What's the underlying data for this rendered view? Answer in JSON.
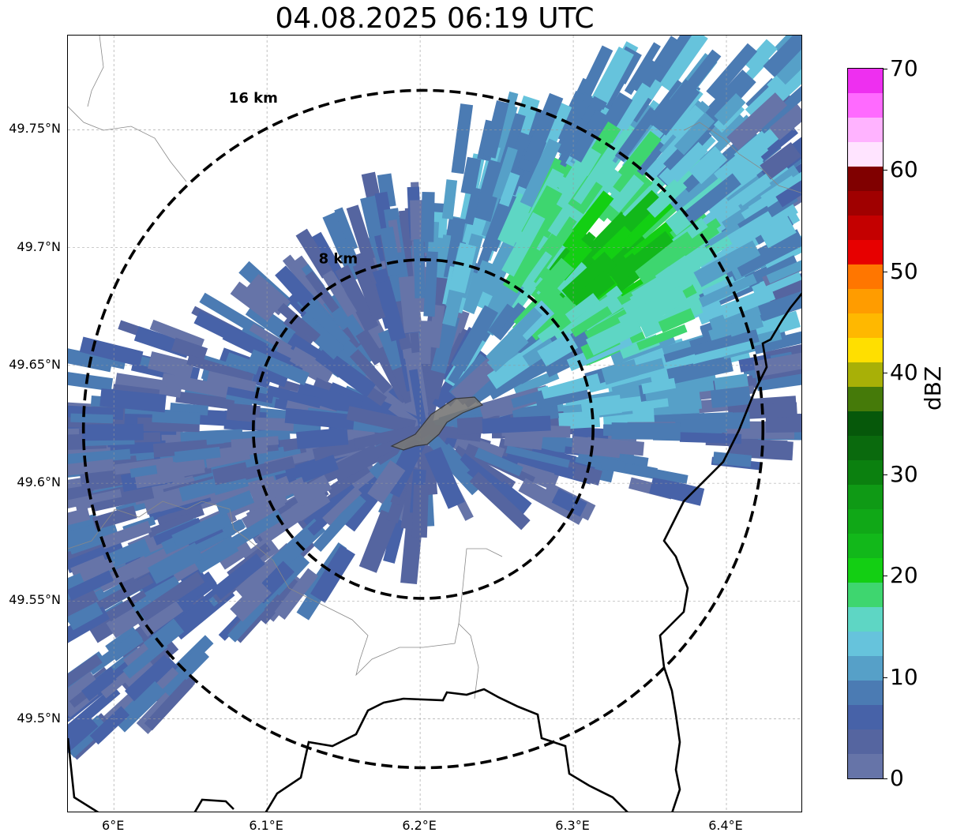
{
  "title": "04.08.2025 06:19 UTC",
  "map": {
    "extent": {
      "lon": [
        5.97,
        6.45
      ],
      "lat": [
        49.46,
        49.79
      ]
    },
    "center": {
      "lon": 6.202,
      "lat": 49.623
    },
    "range_rings": [
      {
        "label": "8 km",
        "radius_km": 8
      },
      {
        "label": "16 km",
        "radius_km": 16
      }
    ],
    "lat_ticks": [
      {
        "value": 49.75,
        "label": "49.75°N"
      },
      {
        "value": 49.7,
        "label": "49.7°N"
      },
      {
        "value": 49.65,
        "label": "49.65°N"
      },
      {
        "value": 49.6,
        "label": "49.6°N"
      },
      {
        "value": 49.55,
        "label": "49.55°N"
      },
      {
        "value": 49.5,
        "label": "49.5°N"
      }
    ],
    "lon_ticks": [
      {
        "value": 6.0,
        "label": "6°E"
      },
      {
        "value": 6.1,
        "label": "6.1°E"
      },
      {
        "value": 6.2,
        "label": "6.2°E"
      },
      {
        "value": 6.3,
        "label": "6.3°E"
      },
      {
        "value": 6.4,
        "label": "6.4°E"
      }
    ],
    "gridlines": true,
    "city_marker_color": "#777777"
  },
  "colorbar": {
    "unit": "dBZ",
    "range": [
      0,
      70
    ],
    "tick_labels": [
      {
        "value": 0,
        "label": "0"
      },
      {
        "value": 10,
        "label": "10"
      },
      {
        "value": 20,
        "label": "20"
      },
      {
        "value": 30,
        "label": "30"
      },
      {
        "value": 40,
        "label": "40"
      },
      {
        "value": 50,
        "label": "50"
      },
      {
        "value": 60,
        "label": "60"
      },
      {
        "value": 70,
        "label": "70"
      }
    ],
    "colors": [
      "#6674a8",
      "#5565a0",
      "#4762a8",
      "#4b7bb3",
      "#56a0c8",
      "#66c3dc",
      "#5ed6c4",
      "#3ed66f",
      "#13cf13",
      "#12b81a",
      "#10a817",
      "#0f9a15",
      "#0b800f",
      "#0a6a0d",
      "#06580a",
      "#457a09",
      "#a8b007",
      "#ffdf00",
      "#ffb800",
      "#ff9c00",
      "#ff7600",
      "#e70000",
      "#c40000",
      "#a00000",
      "#800000",
      "#ffe4ff",
      "#ffb3ff",
      "#ff6aff",
      "#ee2ff0"
    ]
  }
}
